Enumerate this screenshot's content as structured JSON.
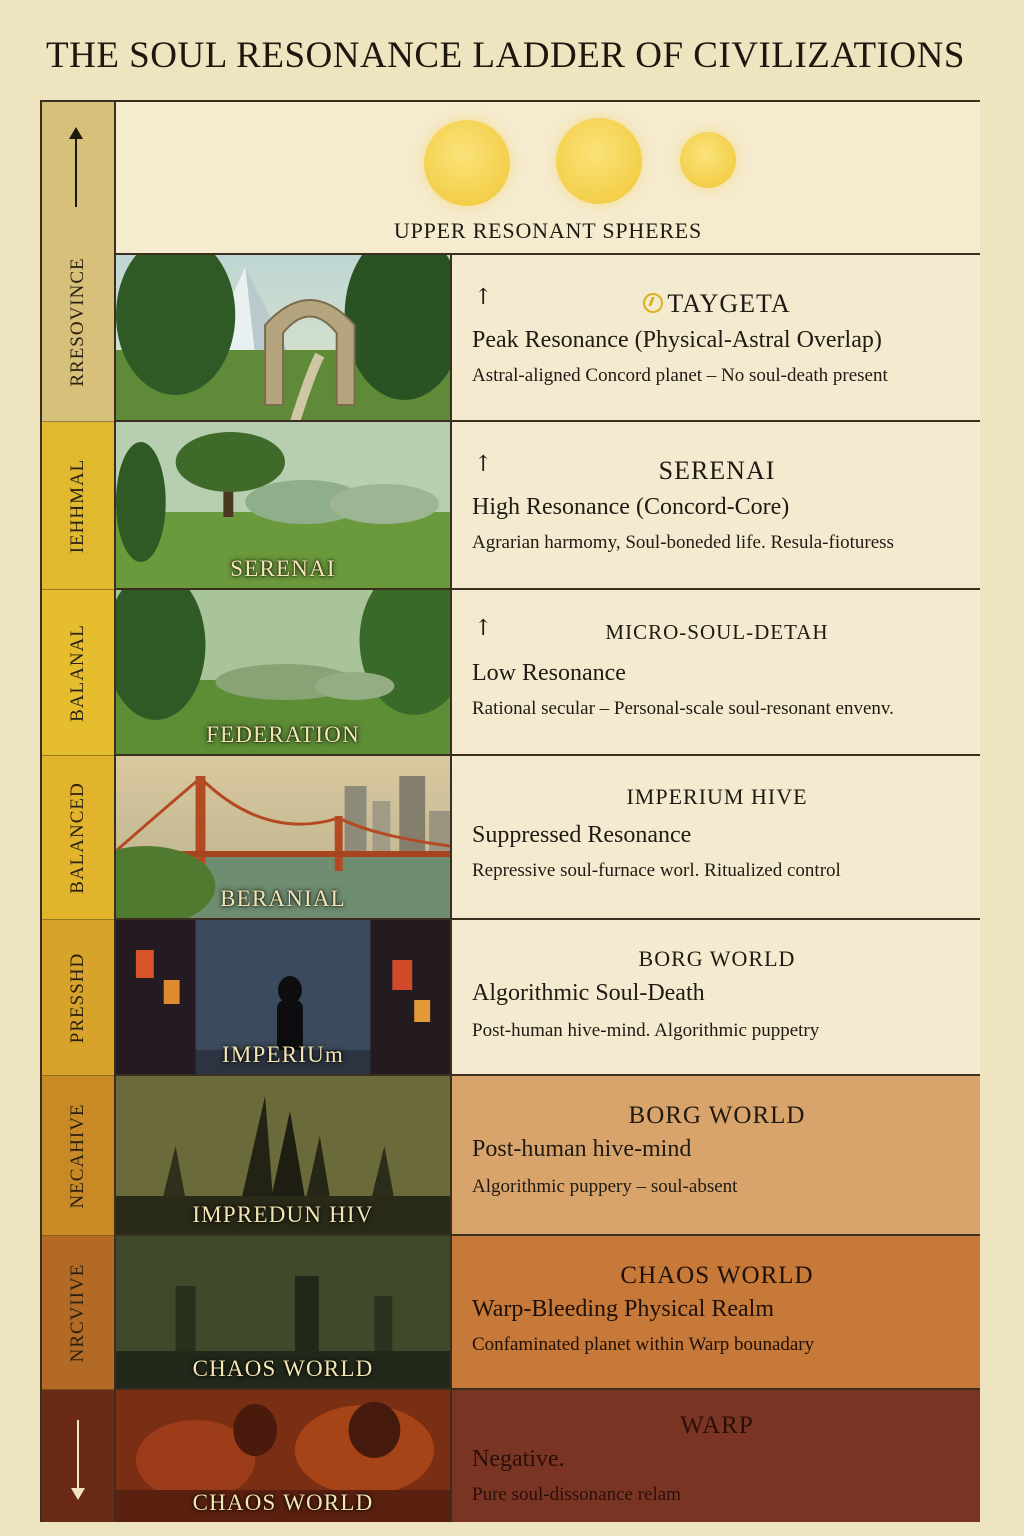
{
  "title": "THE SOUL RESONANCE LADDER OF CIVILIZATIONS",
  "sidebar": {
    "segments": [
      {
        "label": "RRESOVINCE",
        "color": "#c9a53c"
      },
      {
        "label": "IEHHMAL",
        "color": "#e1b92e"
      },
      {
        "label": "BALANAL",
        "color": "#e6bd2c"
      },
      {
        "label": "BALANCED",
        "color": "#e2b42c"
      },
      {
        "label": "PRESSHD",
        "color": "#d8a32a"
      },
      {
        "label": "NECAHIVE",
        "color": "#c98a25"
      },
      {
        "label": "NRCVIIVE",
        "color": "#b36a24"
      },
      {
        "label": "",
        "color": "#6a2a16"
      }
    ]
  },
  "top": {
    "label": "UPPER RESONANT SPHERES"
  },
  "tiers": [
    {
      "image_caption": "",
      "name": "TAYGETA",
      "level": "Peak Resonance (Physical-Astral Overlap)",
      "desc": "Astral-aligned Concord planet – No soul-death present",
      "bg": "#f4ead0",
      "scene": "mountain-arch",
      "arrow": true,
      "emblem": true
    },
    {
      "image_caption": "SERENAI",
      "name": "SERENAI",
      "level": "High Resonance (Concord-Core)",
      "desc": "Agrarian harmomy, Soul-boneded life. Resula-fioturess",
      "bg": "#f4ead0",
      "scene": "meadow-tree",
      "arrow": true,
      "emblem": false
    },
    {
      "image_caption": "FEDERATION",
      "name": "MICRO-SOUL-DETAH",
      "level": "Low Resonance",
      "desc": "Rational secular – Personal-scale soul-resonant envenv.",
      "bg": "#f4ead0",
      "scene": "forest-clearing",
      "arrow": true,
      "emblem": false
    },
    {
      "image_caption": "BERANIAL",
      "name": "IMPERIUM HIVE",
      "level": "Suppressed Resonance",
      "desc": "Repressive soul-furnace worl. Ritualized control",
      "bg": "#f4ead0",
      "scene": "bridge-city",
      "arrow": false,
      "emblem": false
    },
    {
      "image_caption": "IMPERIUm",
      "name": "BORG WORLD",
      "level": "Algorithmic Soul-Death",
      "desc": "Post-human hive-mind. Algorithmic puppetry",
      "bg": "#f4ead0",
      "scene": "neon-street",
      "arrow": false,
      "emblem": false
    },
    {
      "image_caption": "IMPREDUN HIV",
      "name": "BORG WORLD",
      "level": "Post-human hive-mind",
      "desc": "Algorithmic puppery – soul-absent",
      "bg": "#d9a46c",
      "scene": "dark-spires",
      "arrow": false,
      "emblem": false
    },
    {
      "image_caption": "CHAOS WORLD",
      "name": "CHAOS WORLD",
      "level": "Warp-Bleeding Physical Realm",
      "desc": "Confaminated planet within Warp bounadary",
      "bg": "#c7793a",
      "scene": "murky-ruins",
      "arrow": false,
      "emblem": false
    },
    {
      "image_caption": "CHAOS WORLD",
      "name": "WARP",
      "level": "Negative.",
      "desc": "Pure soul-dissonance relam",
      "bg": "#7a3424",
      "scene": "fire-demons",
      "arrow": false,
      "emblem": false
    }
  ]
}
